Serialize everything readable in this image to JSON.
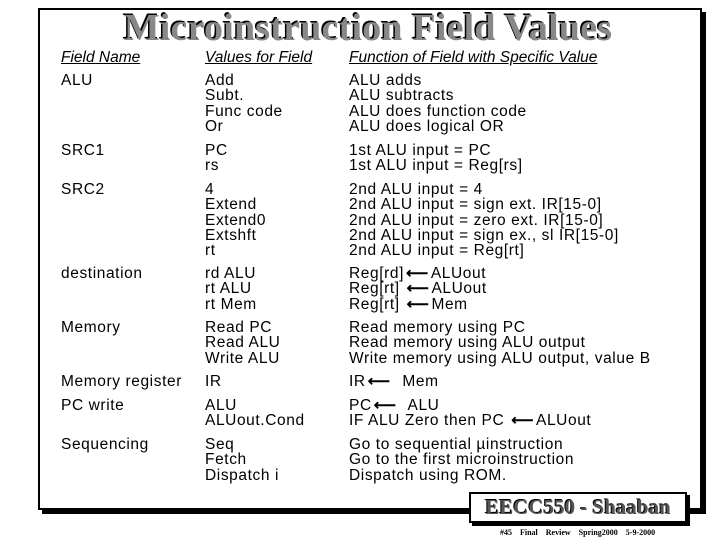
{
  "title": "Microinstruction Field Values",
  "headers": {
    "field_name": "Field Name",
    "values": "Values for Field",
    "function": "Function of Field with Specific Value"
  },
  "rows": [
    {
      "field": "ALU",
      "values": [
        "Add",
        "Subt.",
        "Func code",
        "Or"
      ],
      "functions": [
        {
          "text": "ALU adds"
        },
        {
          "text": "ALU subtracts"
        },
        {
          "text": "ALU does function code"
        },
        {
          "text": "ALU does logical OR"
        }
      ]
    },
    {
      "field": "SRC1",
      "values": [
        "PC",
        "rs"
      ],
      "functions": [
        {
          "text": "1st ALU input = PC"
        },
        {
          "text": "1st ALU input = Reg[rs]"
        }
      ]
    },
    {
      "field": "SRC2",
      "values": [
        "4",
        "Extend",
        "Extend0",
        "Extshft",
        "rt"
      ],
      "functions": [
        {
          "text": "2nd ALU input = 4"
        },
        {
          "text": "2nd ALU input = sign ext. IR[15-0]"
        },
        {
          "text": "2nd ALU input = zero ext. IR[15-0]"
        },
        {
          "text": "2nd ALU input = sign ex., sl IR[15-0]"
        },
        {
          "text": "2nd ALU input = Reg[rt]"
        }
      ]
    },
    {
      "field": "destination",
      "values": [
        "rd ALU",
        "rt ALU",
        "rt Mem"
      ],
      "functions": [
        {
          "prefix": "Reg[rd]",
          "arrow": "⟵",
          "suffix": "ALUout"
        },
        {
          "prefix": "Reg[rt] ",
          "arrow": "⟵",
          "suffix": "ALUout"
        },
        {
          "prefix": "Reg[rt] ",
          "arrow": "⟵",
          "suffix": "Mem"
        }
      ]
    },
    {
      "field": "Memory",
      "values": [
        "Read PC",
        "Read ALU",
        "Write ALU"
      ],
      "functions": [
        {
          "text": "Read memory using PC"
        },
        {
          "text": "Read memory using ALU output"
        },
        {
          "text": "Write memory using ALU output, value B"
        }
      ]
    },
    {
      "field": "Memory register",
      "values": [
        "IR"
      ],
      "functions": [
        {
          "prefix": "IR",
          "arrow": "⟵",
          "suffix": "  Mem"
        }
      ]
    },
    {
      "field": "PC write",
      "values": [
        "ALU",
        "ALUout.Cond"
      ],
      "functions": [
        {
          "prefix": "PC",
          "arrow": "⟵",
          "suffix": "  ALU"
        },
        {
          "prefix": "IF ALU Zero then PC ",
          "arrow": "⟵",
          "suffix": "ALUout"
        }
      ]
    },
    {
      "field": "Sequencing",
      "values": [
        "Seq",
        "Fetch",
        "Dispatch i"
      ],
      "functions": [
        {
          "text": "Go to sequential µinstruction"
        },
        {
          "text": "Go to the first microinstruction"
        },
        {
          "text": "Dispatch using ROM."
        }
      ]
    }
  ],
  "brand": "EECC550 - Shaaban",
  "footer": {
    "slide": "#45",
    "course": "Final Review",
    "term": "Spring2000",
    "date": "5-9-2000"
  }
}
